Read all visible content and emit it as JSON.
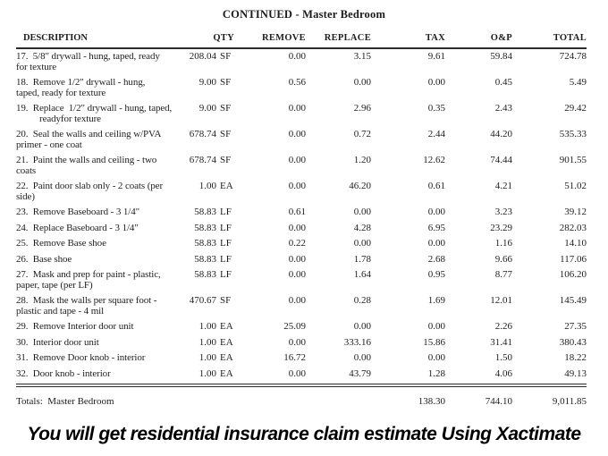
{
  "title": "CONTINUED - Master Bedroom",
  "table": {
    "headers": {
      "description": "DESCRIPTION",
      "qty": "QTY",
      "remove": "REMOVE",
      "replace": "REPLACE",
      "tax": "TAX",
      "oandp": "O&P",
      "total": "TOTAL"
    },
    "rows": [
      {
        "desc_line1": "17.  5/8\" drywall - hung, taped, ready",
        "desc_line2": "for texture",
        "line2_indent": false,
        "qty": "208.04",
        "unit": "SF",
        "remove": "0.00",
        "replace": "3.15",
        "tax": "9.61",
        "oandp": "59.84",
        "total": "724.78"
      },
      {
        "desc_line1": "18.  Remove 1/2\" drywall - hung,",
        "desc_line2": "taped, ready for texture",
        "line2_indent": false,
        "qty": "9.00",
        "unit": "SF",
        "remove": "0.56",
        "replace": "0.00",
        "tax": "0.00",
        "oandp": "0.45",
        "total": "5.49"
      },
      {
        "desc_line1": "19.  Replace  1/2\" drywall - hung, taped,",
        "desc_line2": "readyfor texture",
        "line2_indent": true,
        "qty": "9.00",
        "unit": "SF",
        "remove": "0.00",
        "replace": "2.96",
        "tax": "0.35",
        "oandp": "2.43",
        "total": "29.42"
      },
      {
        "desc_line1": "20.  Seal the walls and ceiling w/PVA",
        "desc_line2": "primer - one coat",
        "line2_indent": false,
        "qty": "678.74",
        "unit": "SF",
        "remove": "0.00",
        "replace": "0.72",
        "tax": "2.44",
        "oandp": "44.20",
        "total": "535.33"
      },
      {
        "desc_line1": "21.  Paint the walls and ceiling - two",
        "desc_line2": "coats",
        "line2_indent": false,
        "qty": "678.74",
        "unit": "SF",
        "remove": "0.00",
        "replace": "1.20",
        "tax": "12.62",
        "oandp": "74.44",
        "total": "901.55"
      },
      {
        "desc_line1": "22.  Paint door slab only - 2 coats (per",
        "desc_line2": "side)",
        "line2_indent": false,
        "qty": "1.00",
        "unit": "EA",
        "remove": "0.00",
        "replace": "46.20",
        "tax": "0.61",
        "oandp": "4.21",
        "total": "51.02"
      },
      {
        "desc_line1": "23.  Remove Baseboard - 3 1/4\"",
        "desc_line2": "",
        "line2_indent": false,
        "qty": "58.83",
        "unit": "LF",
        "remove": "0.61",
        "replace": "0.00",
        "tax": "0.00",
        "oandp": "3.23",
        "total": "39.12"
      },
      {
        "desc_line1": "24.  Replace Baseboard - 3 1/4\"",
        "desc_line2": "",
        "line2_indent": false,
        "qty": "58.83",
        "unit": "LF",
        "remove": "0.00",
        "replace": "4.28",
        "tax": "6.95",
        "oandp": "23.29",
        "total": "282.03"
      },
      {
        "desc_line1": "25.  Remove Base shoe",
        "desc_line2": "",
        "line2_indent": false,
        "qty": "58.83",
        "unit": "LF",
        "remove": "0.22",
        "replace": "0.00",
        "tax": "0.00",
        "oandp": "1.16",
        "total": "14.10"
      },
      {
        "desc_line1": "26.  Base shoe",
        "desc_line2": "",
        "line2_indent": false,
        "qty": "58.83",
        "unit": "LF",
        "remove": "0.00",
        "replace": "1.78",
        "tax": "2.68",
        "oandp": "9.66",
        "total": "117.06"
      },
      {
        "desc_line1": "27.  Mask and prep for paint - plastic,",
        "desc_line2": "paper, tape (per LF)",
        "line2_indent": false,
        "qty": "58.83",
        "unit": "LF",
        "remove": "0.00",
        "replace": "1.64",
        "tax": "0.95",
        "oandp": "8.77",
        "total": "106.20"
      },
      {
        "desc_line1": "28.  Mask the walls per square foot -",
        "desc_line2": "plastic and tape - 4 mil",
        "line2_indent": false,
        "qty": "470.67",
        "unit": "SF",
        "remove": "0.00",
        "replace": "0.28",
        "tax": "1.69",
        "oandp": "12.01",
        "total": "145.49"
      },
      {
        "desc_line1": "29.  Remove Interior door unit",
        "desc_line2": "",
        "line2_indent": false,
        "qty": "1.00",
        "unit": "EA",
        "remove": "25.09",
        "replace": "0.00",
        "tax": "0.00",
        "oandp": "2.26",
        "total": "27.35"
      },
      {
        "desc_line1": "30.  Interior door unit",
        "desc_line2": "",
        "line2_indent": false,
        "qty": "1.00",
        "unit": "EA",
        "remove": "0.00",
        "replace": "333.16",
        "tax": "15.86",
        "oandp": "31.41",
        "total": "380.43"
      },
      {
        "desc_line1": "31.  Remove Door knob - interior",
        "desc_line2": "",
        "line2_indent": false,
        "qty": "1.00",
        "unit": "EA",
        "remove": "16.72",
        "replace": "0.00",
        "tax": "0.00",
        "oandp": "1.50",
        "total": "18.22"
      },
      {
        "desc_line1": "32.  Door knob - interior",
        "desc_line2": "",
        "line2_indent": false,
        "qty": "1.00",
        "unit": "EA",
        "remove": "0.00",
        "replace": "43.79",
        "tax": "1.28",
        "oandp": "4.06",
        "total": "49.13"
      }
    ],
    "totals": {
      "label": "Totals:  Master Bedroom",
      "tax": "138.30",
      "oandp": "744.10",
      "total": "9,011.85"
    }
  },
  "caption": "You will get residential insurance claim estimate Using Xactimate"
}
